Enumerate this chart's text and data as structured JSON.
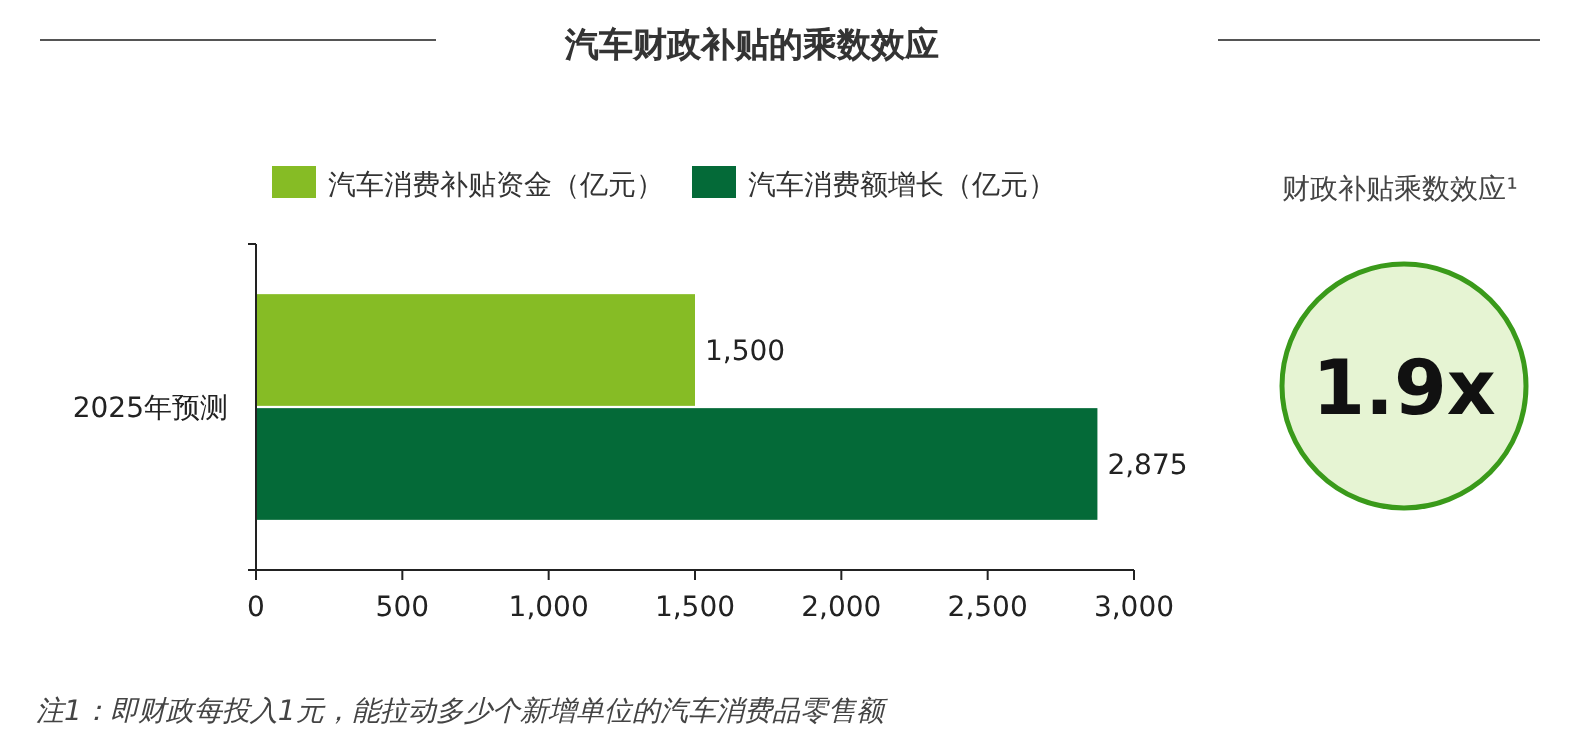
{
  "chart_data": [
    {
      "type": "bar",
      "orientation": "horizontal",
      "title": "汽车财政补贴的乘数效应",
      "categories": [
        "2025年预测"
      ],
      "series": [
        {
          "name": "汽车消费补贴资金（亿元）",
          "color": "#86bc25",
          "values": [
            1500
          ],
          "value_labels": [
            "1,500"
          ]
        },
        {
          "name": "汽车消费额增长（亿元）",
          "color": "#046a38",
          "values": [
            2875
          ],
          "value_labels": [
            "2,875"
          ]
        }
      ],
      "xlim": [
        0,
        3000
      ],
      "xticks": [
        {
          "value": 0,
          "label": "0"
        },
        {
          "value": 500,
          "label": "500"
        },
        {
          "value": 1000,
          "label": "1,000"
        },
        {
          "value": 1500,
          "label": "1,500"
        },
        {
          "value": 2000,
          "label": "2,000"
        },
        {
          "value": 2500,
          "label": "2,500"
        },
        {
          "value": 3000,
          "label": "3,000"
        }
      ],
      "legend": "top",
      "grid": false,
      "annotations": [
        "注1：即财政每投入1元，能拉动多少个新增单位的汽车消费品零售额"
      ]
    },
    {
      "type": "other",
      "title": "财政补贴乘数效应¹",
      "annotations": [
        "1.9x"
      ]
    }
  ]
}
